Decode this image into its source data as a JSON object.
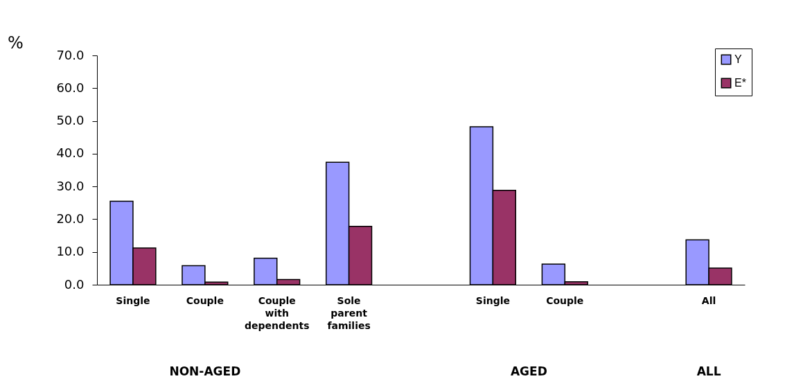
{
  "chart_data": {
    "type": "bar",
    "ylabel": "%",
    "categories": [
      "Single",
      "Couple",
      "Couple with dependents",
      "Sole parent families",
      null,
      "Single",
      "Couple",
      null,
      "All"
    ],
    "series": [
      {
        "name": "Y",
        "color": "#9999ff",
        "values": [
          25.5,
          5.8,
          8.1,
          37.4,
          null,
          48.2,
          6.3,
          null,
          13.7
        ]
      },
      {
        "name": "E*",
        "color": "#993366",
        "values": [
          11.2,
          0.8,
          1.6,
          17.8,
          null,
          28.8,
          0.9,
          null,
          5.1
        ]
      }
    ],
    "ylim": [
      0,
      70
    ],
    "yticks": [
      {
        "value": 0,
        "label": "0.0"
      },
      {
        "value": 10,
        "label": "10.0"
      },
      {
        "value": 20,
        "label": "20.0"
      },
      {
        "value": 30,
        "label": "30.0"
      },
      {
        "value": 40,
        "label": "40.0"
      },
      {
        "value": 50,
        "label": "50.0"
      },
      {
        "value": 60,
        "label": "60.0"
      },
      {
        "value": 70,
        "label": "70.0"
      }
    ],
    "annotations": [
      "NON-AGED",
      "AGED",
      "ALL"
    ],
    "legend": "top right",
    "grid": false
  }
}
